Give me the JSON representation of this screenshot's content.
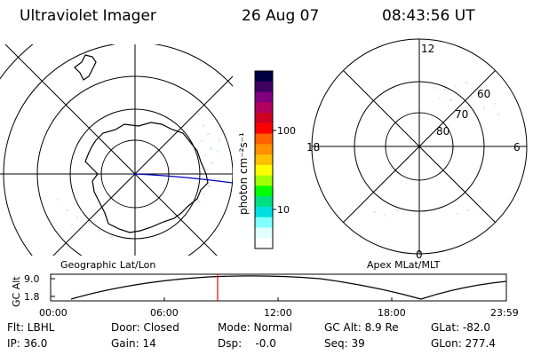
{
  "header": {
    "instrument": "Ultraviolet Imager",
    "date": "26 Aug 07",
    "time": "08:43:56 UT"
  },
  "left_panel": {
    "label": "Geographic Lat/Lon"
  },
  "right_panel": {
    "label": "Apex MLat/MLT",
    "mlt_labels": [
      "12",
      "18",
      "6",
      "0"
    ],
    "mlat_labels": [
      "60",
      "70",
      "80"
    ]
  },
  "colorbar": {
    "unit_label": "photon cm⁻²s⁻¹",
    "ticks": [
      "100",
      "10"
    ],
    "colors": [
      "#000040",
      "#400060",
      "#800080",
      "#b00060",
      "#d00020",
      "#ff0000",
      "#ff6000",
      "#ff9000",
      "#ffc000",
      "#ffff00",
      "#a0ff00",
      "#00ff00",
      "#00e080",
      "#00e0e0",
      "#80ffff",
      "#e0ffff",
      "#ffffff"
    ]
  },
  "altitude_plot": {
    "ylabel": "GC Alt",
    "yticks": [
      "9.0",
      "1.8"
    ],
    "xticks": [
      "00:00",
      "06:00",
      "12:00",
      "18:00",
      "23:59"
    ],
    "current_marker_color": "#ff0000"
  },
  "footer": {
    "flt": "Flt: LBHL",
    "door": "Door: Closed",
    "mode": "Mode: Normal",
    "gc_alt": "GC Alt: 8.9 Re",
    "glat": "GLat: -82.0",
    "ip": "IP: 36.0",
    "gain": "Gain: 14",
    "dsp": "Dsp:    -0.0",
    "seq": "Seq: 39",
    "glon": "GLon: 277.4"
  }
}
